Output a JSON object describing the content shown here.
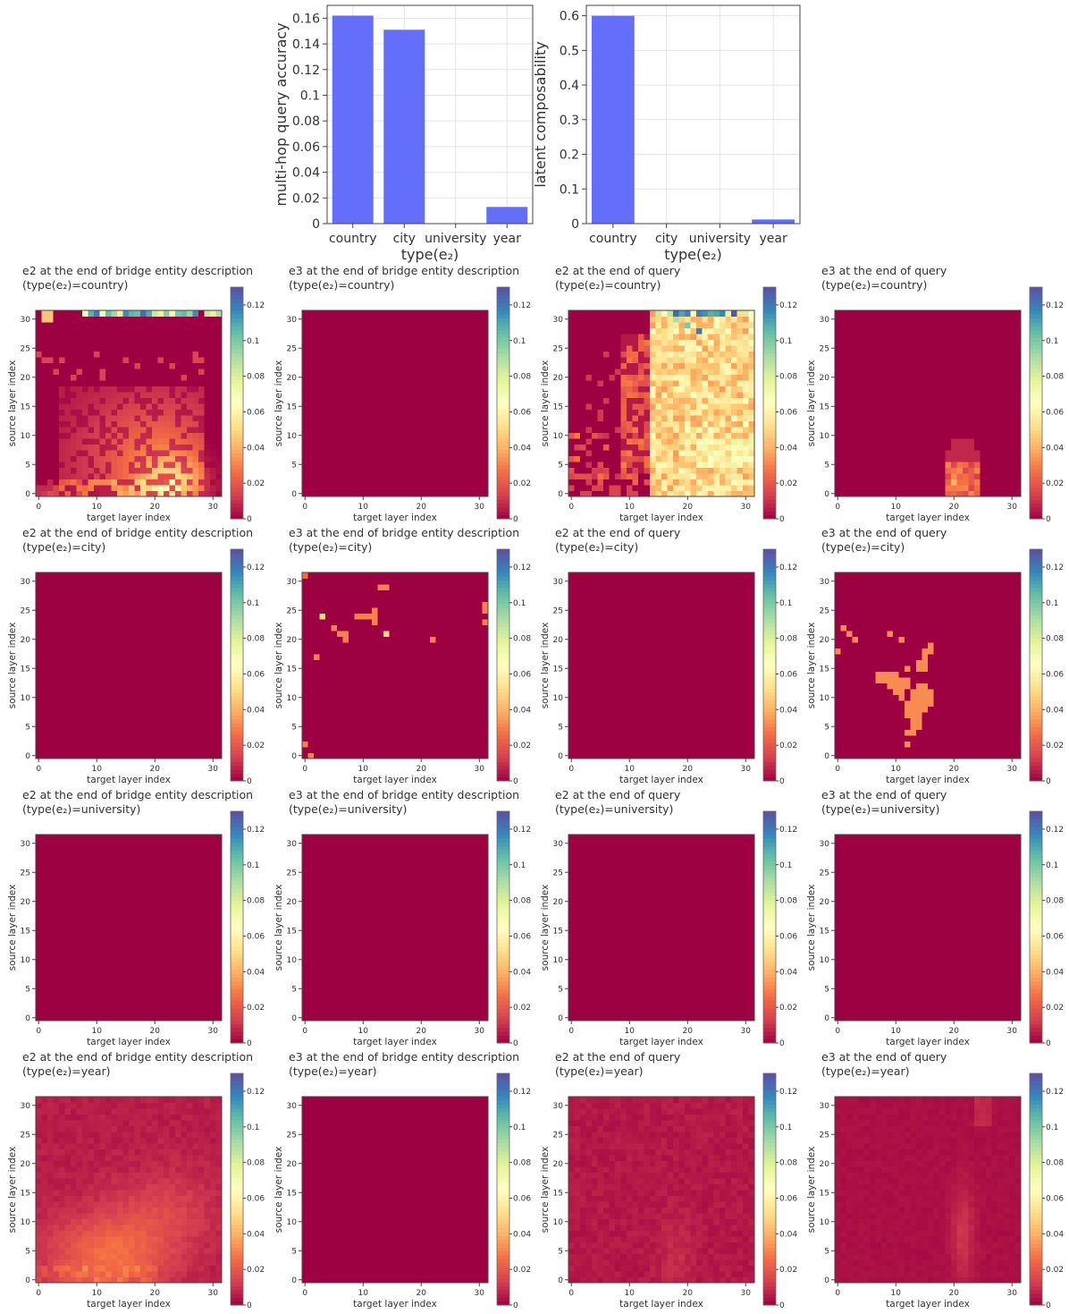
{
  "colors": {
    "bar": "#636efa",
    "grid": "#e5e5e5",
    "axis": "#444444",
    "colormap": [
      "#9e0142",
      "#d53e4f",
      "#f46d43",
      "#fdae61",
      "#fee08b",
      "#ffffbf",
      "#e6f598",
      "#abdda4",
      "#66c2a5",
      "#3288bd",
      "#5e4fa2"
    ]
  },
  "chart_data": [
    {
      "type": "bar",
      "xlabel": "type(e₂)",
      "ylabel": "multi-hop query accuracy",
      "categories": [
        "country",
        "city",
        "university",
        "year"
      ],
      "values": [
        0.162,
        0.151,
        0.0,
        0.013
      ],
      "ylim": [
        0,
        0.17
      ],
      "yticks": [
        0,
        0.02,
        0.04,
        0.06,
        0.08,
        0.1,
        0.12,
        0.14,
        0.16
      ],
      "ytick_labels": [
        "0",
        "0.02",
        "0.04",
        "0.06",
        "0.08",
        "0.1",
        "0.12",
        "0.14",
        "0.16"
      ],
      "grid": true
    },
    {
      "type": "bar",
      "xlabel": "type(e₂)",
      "ylabel": "latent composability",
      "categories": [
        "country",
        "city",
        "university",
        "year"
      ],
      "values": [
        0.6,
        0.0,
        0.0,
        0.012
      ],
      "ylim": [
        0,
        0.63
      ],
      "yticks": [
        0,
        0.1,
        0.2,
        0.3,
        0.4,
        0.5,
        0.6
      ],
      "ytick_labels": [
        "0",
        "0.1",
        "0.2",
        "0.3",
        "0.4",
        "0.5",
        "0.6"
      ],
      "grid": true
    }
  ],
  "heatmap_common": {
    "type": "heatmap",
    "xlabel": "target layer index",
    "ylabel": "source layer index",
    "xticks": [
      0,
      10,
      20,
      30
    ],
    "yticks": [
      0,
      5,
      10,
      15,
      20,
      25,
      30
    ],
    "colorbar_range": [
      0,
      0.13
    ],
    "colorbar_ticks": [
      0,
      0.02,
      0.04,
      0.06,
      0.08,
      0.1,
      0.12
    ],
    "colorbar_tick_labels": [
      "0",
      "0.02",
      "0.04",
      "0.06",
      "0.08",
      "0.1",
      "0.12"
    ]
  },
  "heatmaps": [
    {
      "title": "e2 at the end of bridge entity description",
      "subtitle": "(type(e₂)=country)",
      "pattern": "country_e2_bridge"
    },
    {
      "title": "e3 at the end of bridge entity description",
      "subtitle": "(type(e₂)=country)",
      "pattern": "zero"
    },
    {
      "title": "e2 at the end of query",
      "subtitle": "(type(e₂)=country)",
      "pattern": "country_e2_query"
    },
    {
      "title": "e3 at the end of query",
      "subtitle": "(type(e₂)=country)",
      "pattern": "country_e3_query"
    },
    {
      "title": "e2 at the end of bridge entity description",
      "subtitle": "(type(e₂)=city)",
      "pattern": "zero"
    },
    {
      "title": "e3 at the end of bridge entity description",
      "subtitle": "(type(e₂)=city)",
      "pattern": "city_e3_bridge"
    },
    {
      "title": "e2 at the end of query",
      "subtitle": "(type(e₂)=city)",
      "pattern": "zero"
    },
    {
      "title": "e3 at the end of query",
      "subtitle": "(type(e₂)=city)",
      "pattern": "city_e3_query"
    },
    {
      "title": "e2 at the end of bridge entity description",
      "subtitle": "(type(e₂)=university)",
      "pattern": "zero"
    },
    {
      "title": "e3 at the end of bridge entity description",
      "subtitle": "(type(e₂)=university)",
      "pattern": "zero"
    },
    {
      "title": "e2 at the end of query",
      "subtitle": "(type(e₂)=university)",
      "pattern": "zero"
    },
    {
      "title": "e3 at the end of query",
      "subtitle": "(type(e₂)=university)",
      "pattern": "zero"
    },
    {
      "title": "e2 at the end of bridge entity description",
      "subtitle": "(type(e₂)=year)",
      "pattern": "year_e2_bridge"
    },
    {
      "title": "e3 at the end of bridge entity description",
      "subtitle": "(type(e₂)=year)",
      "pattern": "zero"
    },
    {
      "title": "e2 at the end of query",
      "subtitle": "(type(e₂)=year)",
      "pattern": "year_e2_query"
    },
    {
      "title": "e3 at the end of query",
      "subtitle": "(type(e₂)=year)",
      "pattern": "year_e3_query"
    }
  ]
}
